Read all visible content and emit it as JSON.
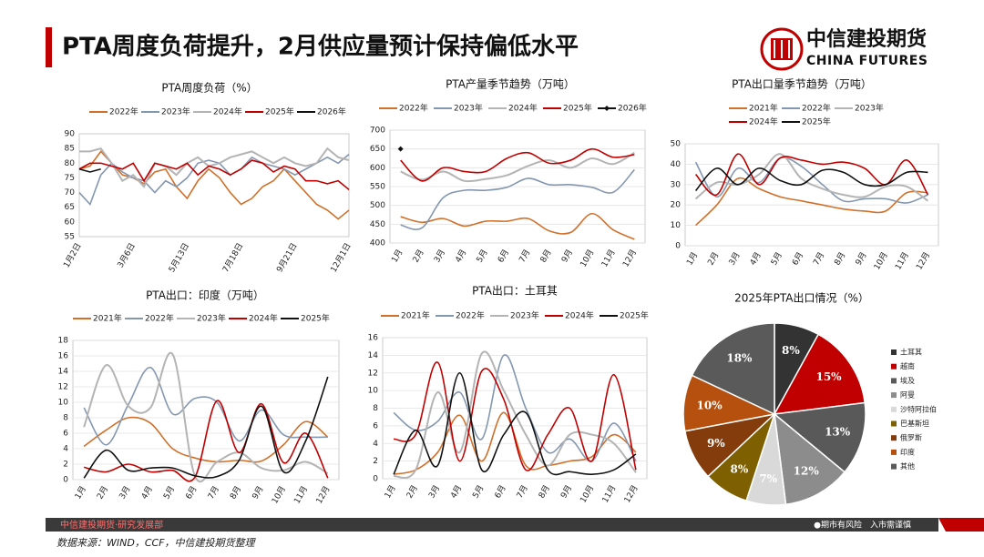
{
  "header": {
    "title": "PTA周度负荷提升，2月供应量预计保持偏低水平"
  },
  "logo": {
    "name": "中信建投期货",
    "en": "CHINA FUTURES"
  },
  "footer": {
    "dept": "中信建投期货·研究发展部",
    "risk": "●期市有风险　入市需谨慎",
    "source": "数据来源：WIND，CCF，中信建投期货整理"
  },
  "chart_data": [
    {
      "type": "line",
      "title": "PTA周度负荷（%）",
      "grid": false,
      "categories": [
        "1月2日",
        null,
        null,
        null,
        null,
        "3月6日",
        null,
        null,
        null,
        null,
        "5月13日",
        null,
        null,
        null,
        null,
        "7月18日",
        null,
        null,
        null,
        null,
        "9月21日",
        null,
        null,
        null,
        null,
        "12月1日"
      ],
      "ylim": [
        55,
        90
      ],
      "yticks": [
        55,
        60,
        65,
        70,
        75,
        80,
        85,
        90
      ],
      "series": [
        {
          "name": "2022年",
          "color": "#d0702a",
          "values": [
            78,
            79,
            84,
            80,
            76,
            75,
            73,
            77,
            78,
            72,
            68,
            74,
            78,
            75,
            70,
            66,
            68,
            72,
            74,
            78,
            74,
            70,
            66,
            64,
            61,
            64
          ]
        },
        {
          "name": "2023年",
          "color": "#8497b0",
          "values": [
            70,
            66,
            76,
            80,
            77,
            75,
            74,
            70,
            74,
            72,
            75,
            80,
            81,
            80,
            76,
            78,
            82,
            80,
            79,
            78,
            76,
            78,
            80,
            82,
            80,
            83
          ]
        },
        {
          "name": "2024年",
          "color": "#b4b4b4",
          "values": [
            84,
            84,
            85,
            80,
            74,
            76,
            72,
            80,
            79,
            76,
            80,
            82,
            79,
            80,
            82,
            83,
            84,
            82,
            80,
            82,
            80,
            79,
            80,
            85,
            82,
            81
          ]
        },
        {
          "name": "2025年",
          "color": "#c00000",
          "values": [
            78,
            80,
            80,
            79,
            78,
            80,
            74,
            80,
            79,
            78,
            80,
            76,
            79,
            78,
            76,
            78,
            81,
            80,
            77,
            79,
            78,
            74,
            74,
            73,
            74,
            71
          ]
        },
        {
          "name": "2026年",
          "color": "#111111",
          "values": [
            78,
            77,
            78,
            null,
            null,
            null,
            null,
            null,
            null,
            null,
            null,
            null,
            null,
            null,
            null,
            null,
            null,
            null,
            null,
            null,
            null,
            null,
            null,
            null,
            null,
            null
          ]
        }
      ]
    },
    {
      "type": "line",
      "title": "PTA产量季节趋势（万吨）",
      "grid": true,
      "categories": [
        "1月",
        "2月",
        "3月",
        "4月",
        "5月",
        "6月",
        "7月",
        "8月",
        "9月",
        "10月",
        "11月",
        "12月"
      ],
      "ylim": [
        400,
        700
      ],
      "yticks": [
        400,
        450,
        500,
        550,
        600,
        650,
        700
      ],
      "series": [
        {
          "name": "2022年",
          "color": "#d0702a",
          "values": [
            470,
            455,
            465,
            445,
            458,
            458,
            465,
            432,
            428,
            478,
            435,
            410
          ]
        },
        {
          "name": "2023年",
          "color": "#8497b0",
          "values": [
            448,
            440,
            520,
            540,
            540,
            548,
            572,
            555,
            555,
            548,
            535,
            595
          ]
        },
        {
          "name": "2024年",
          "color": "#b4b4b4",
          "values": [
            590,
            568,
            590,
            565,
            570,
            580,
            605,
            620,
            600,
            625,
            610,
            640
          ]
        },
        {
          "name": "2025年",
          "color": "#c00000",
          "values": [
            620,
            565,
            600,
            590,
            590,
            625,
            640,
            612,
            620,
            650,
            628,
            635
          ]
        },
        {
          "name": "2026年",
          "color": "#111111",
          "marker": "diamond",
          "values": [
            650,
            null,
            null,
            null,
            null,
            null,
            null,
            null,
            null,
            null,
            null,
            null
          ]
        }
      ]
    },
    {
      "type": "line",
      "title": "PTA出口量季节趋势（万吨）",
      "grid": true,
      "categories": [
        "1月",
        "2月",
        "3月",
        "4月",
        "5月",
        "6月",
        "7月",
        "8月",
        "9月",
        "10月",
        "11月",
        "12月"
      ],
      "ylim": [
        0,
        50
      ],
      "yticks": [
        0,
        10,
        20,
        30,
        40,
        50
      ],
      "series": [
        {
          "name": "2021年",
          "color": "#d0702a",
          "values": [
            10,
            20,
            33,
            28,
            24,
            22,
            20,
            18,
            17,
            17,
            26,
            26
          ]
        },
        {
          "name": "2022年",
          "color": "#8497b0",
          "values": [
            41,
            24,
            38,
            31,
            43,
            39,
            30,
            22,
            23,
            23,
            21,
            25
          ]
        },
        {
          "name": "2023年",
          "color": "#b4b4b4",
          "values": [
            23,
            31,
            30,
            35,
            45,
            33,
            28,
            25,
            24,
            29,
            29,
            22
          ]
        },
        {
          "name": "2024年",
          "color": "#c00000",
          "values": [
            35,
            25,
            45,
            30,
            43,
            42,
            40,
            41,
            38,
            30,
            42,
            25
          ]
        },
        {
          "name": "2025年",
          "color": "#111111",
          "values": [
            27,
            38,
            30,
            38,
            32,
            30,
            37,
            36,
            30,
            30,
            36,
            36
          ]
        }
      ]
    },
    {
      "type": "line",
      "title": "PTA出口：印度（万吨）",
      "grid": true,
      "categories": [
        "1月",
        "2月",
        "3月",
        "4月",
        "5月",
        "6月",
        "7月",
        "8月",
        "9月",
        "10月",
        "11月",
        "12月"
      ],
      "ylim": [
        0,
        18
      ],
      "yticks": [
        0,
        2,
        4,
        6,
        8,
        10,
        12,
        14,
        16,
        18
      ],
      "series": [
        {
          "name": "2021年",
          "color": "#d0702a",
          "values": [
            4.3,
            6.4,
            8,
            7.3,
            4,
            2.8,
            2.3,
            2.5,
            2.4,
            4.5,
            7.5,
            5.5
          ]
        },
        {
          "name": "2022年",
          "color": "#8497b0",
          "values": [
            9.3,
            4.5,
            9.7,
            14.5,
            8.5,
            10.5,
            10,
            5,
            9,
            5.8,
            5.5,
            5.5
          ]
        },
        {
          "name": "2023年",
          "color": "#b4b4b4",
          "values": [
            6.8,
            14.8,
            9.5,
            9.3,
            16.2,
            0.5,
            2.3,
            3.5,
            1.5,
            1.2,
            2.3,
            0.8
          ]
        },
        {
          "name": "2024年",
          "color": "#c00000",
          "values": [
            1.6,
            1,
            2,
            1,
            1.2,
            0.3,
            10.2,
            3.5,
            9.8,
            2.2,
            6,
            0.2
          ]
        },
        {
          "name": "2025年",
          "color": "#111111",
          "values": [
            0.2,
            3.8,
            1.2,
            1.5,
            1.5,
            0.5,
            0.4,
            2.5,
            9.5,
            1,
            5,
            13.3
          ]
        }
      ]
    },
    {
      "type": "line",
      "title": "PTA出口：土耳其",
      "grid": true,
      "categories": [
        "1月",
        "2月",
        "3月",
        "4月",
        "5月",
        "6月",
        "7月",
        "8月",
        "9月",
        "10月",
        "11月",
        "12月"
      ],
      "ylim": [
        0,
        16
      ],
      "yticks": [
        0,
        2,
        4,
        6,
        8,
        10,
        12,
        14,
        16
      ],
      "series": [
        {
          "name": "2021年",
          "color": "#d0702a",
          "values": [
            0.5,
            1,
            3,
            7.2,
            2,
            7.5,
            1.5,
            1.5,
            2,
            2.5,
            5,
            3
          ]
        },
        {
          "name": "2022年",
          "color": "#8497b0",
          "values": [
            7.5,
            5.5,
            6.5,
            9.8,
            4.5,
            14,
            8,
            3,
            4.5,
            2,
            6.3,
            2
          ]
        },
        {
          "name": "2023年",
          "color": "#b4b4b4",
          "values": [
            0.3,
            1,
            9.8,
            3,
            14.2,
            10,
            5,
            1.5,
            5,
            5,
            4,
            0.7
          ]
        },
        {
          "name": "2024年",
          "color": "#c00000",
          "values": [
            4.5,
            5,
            13.2,
            2,
            12.2,
            9,
            1,
            5,
            8,
            2,
            11.8,
            1
          ]
        },
        {
          "name": "2025年",
          "color": "#111111",
          "values": [
            0.5,
            5.5,
            1.5,
            12,
            1,
            5,
            7.5,
            1,
            0.8,
            0.5,
            1,
            2.8
          ]
        }
      ]
    },
    {
      "type": "pie",
      "title": "2025年PTA出口情况（%）",
      "categories": [
        "土耳其",
        "越南",
        "埃及",
        "阿曼",
        "沙特阿拉伯",
        "巴基斯坦",
        "俄罗斯",
        "印度",
        "其他"
      ],
      "values": [
        8,
        15,
        13,
        12,
        7,
        8,
        9,
        10,
        18
      ],
      "value_labels": [
        "8%",
        "15%",
        "13%",
        "12%",
        "7%",
        "8%",
        "9%",
        "10%",
        "18%"
      ],
      "colors": [
        "#333333",
        "#c00000",
        "#595959",
        "#8c8c8c",
        "#d9d9d9",
        "#7f6000",
        "#843c0c",
        "#b5500f",
        "#5a5a5a"
      ]
    }
  ]
}
